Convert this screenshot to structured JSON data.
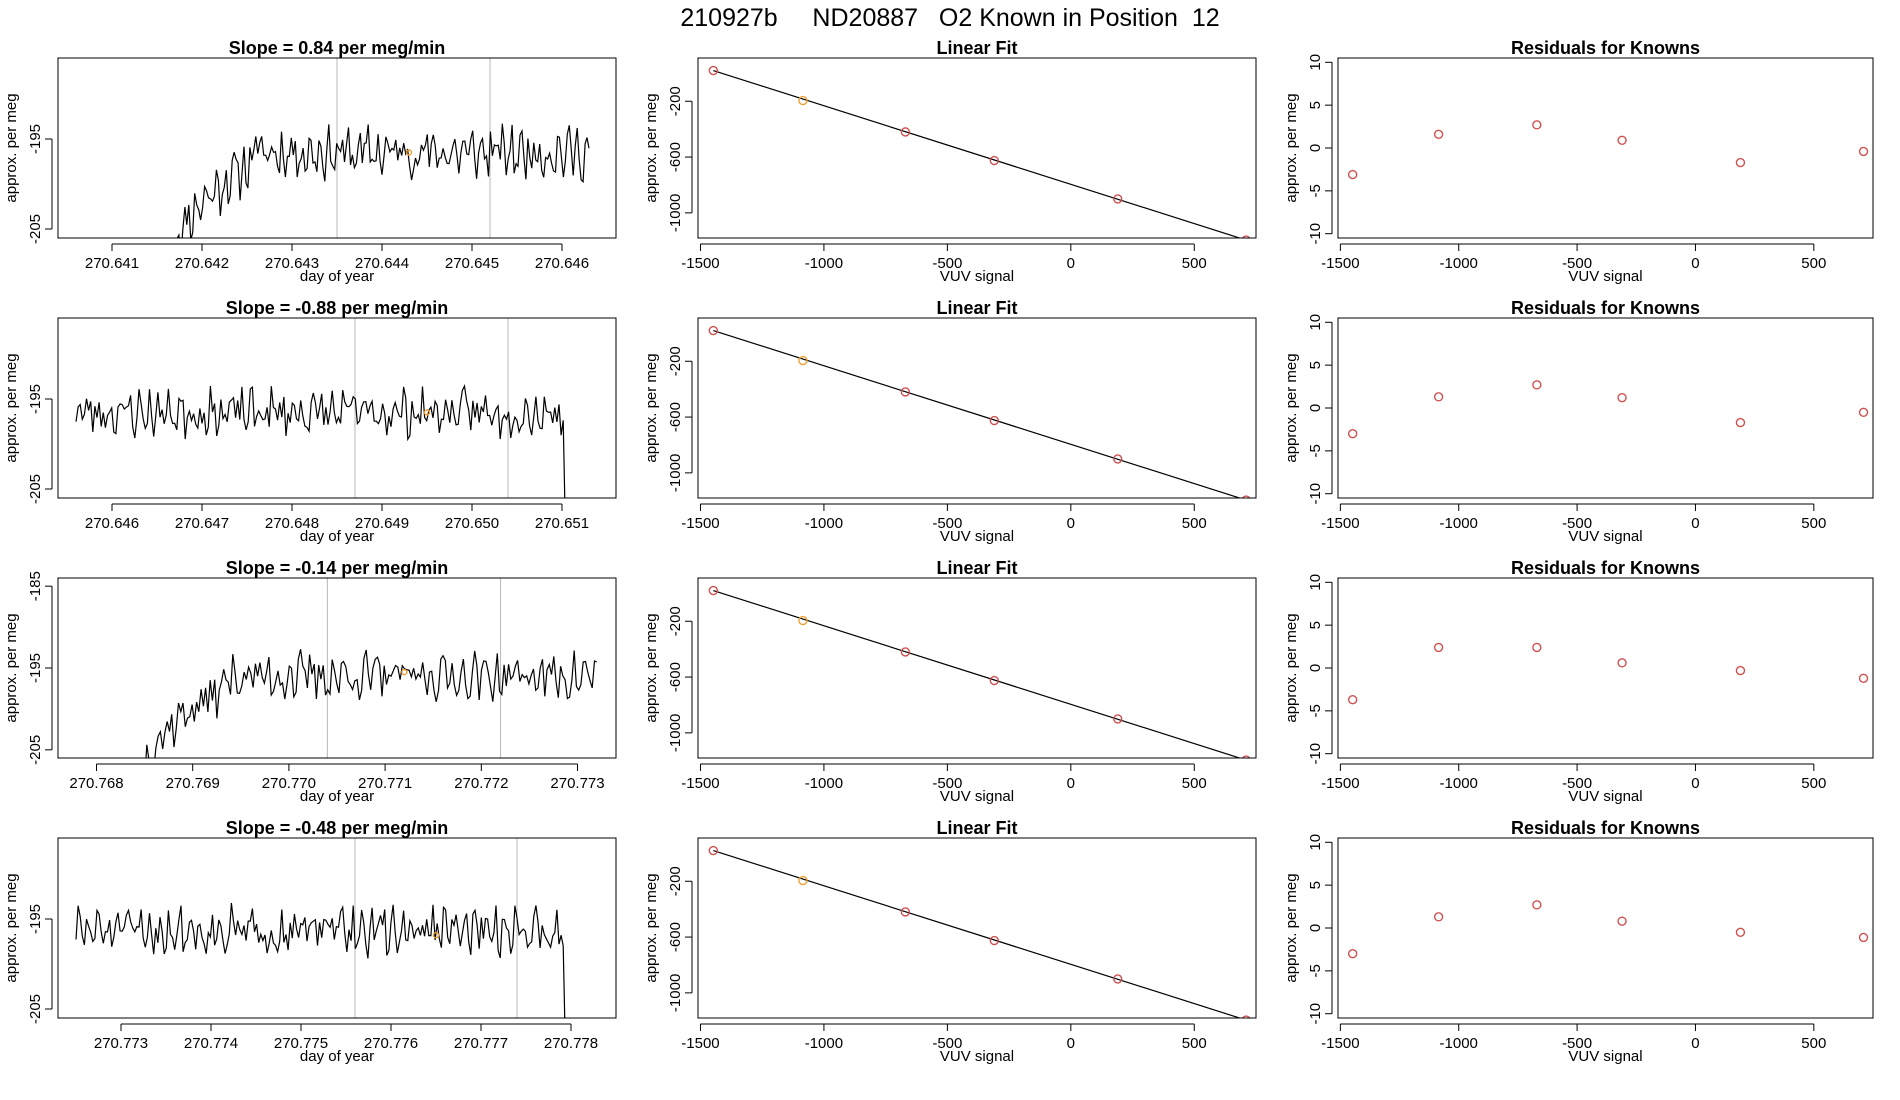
{
  "figure": {
    "title": "210927b     ND20887   O2 Known in Position  12"
  },
  "chart_data": [
    {
      "type": "line",
      "panel": "time-series",
      "row": 1,
      "title": "Slope =  0.84  per meg/min",
      "xlabel": "day of year",
      "ylabel": "approx. per meg",
      "xlim": [
        270.6404,
        270.6466
      ],
      "ylim": [
        -206,
        -186
      ],
      "xticks": [
        "270.641",
        "270.642",
        "270.643",
        "270.644",
        "270.645",
        "270.646"
      ],
      "xtick_values": [
        270.641,
        270.642,
        270.643,
        270.644,
        270.645,
        270.646
      ],
      "yticks": [
        "-205",
        "-195"
      ],
      "ytick_values": [
        -205,
        -195
      ],
      "vlines": [
        270.6435,
        270.6452
      ],
      "marker": {
        "x": 270.6443,
        "y": -196.5,
        "color": "#f0a030"
      },
      "start": 270.6417,
      "end": 270.6463,
      "level": -196.5,
      "ramp": 0.6,
      "noise": 2.2,
      "drop": false,
      "seed": 11,
      "n": 210,
      "line_color": "#000000"
    },
    {
      "type": "line",
      "panel": "linear-fit",
      "row": 1,
      "title": "Linear Fit",
      "xlabel": "VUV signal",
      "ylabel": "approx. per meg",
      "xlim": [
        -1510,
        750
      ],
      "ylim": [
        -1180,
        110
      ],
      "xticks": [
        "-1500",
        "-1000",
        "-500",
        "0",
        "500"
      ],
      "xtick_values": [
        -1500,
        -1000,
        -500,
        0,
        500
      ],
      "yticks": [
        "-200",
        "-600",
        "-1000"
      ],
      "ytick_values": [
        -200,
        -600,
        -1000
      ],
      "points": [
        {
          "x": -1448,
          "y": 20
        },
        {
          "x": -1085,
          "y": -195
        },
        {
          "x": -670,
          "y": -420
        },
        {
          "x": -310,
          "y": -625
        },
        {
          "x": 190,
          "y": -900
        },
        {
          "x": 710,
          "y": -1195
        }
      ],
      "highlight_index": 1,
      "point_color": "#d05050",
      "highlight_color": "#f0a030"
    },
    {
      "type": "scatter",
      "panel": "residuals",
      "row": 1,
      "title": "Residuals for Knowns",
      "xlabel": "VUV signal",
      "ylabel": "approx. per meg",
      "xlim": [
        -1510,
        750
      ],
      "ylim": [
        -10.5,
        10.5
      ],
      "xticks": [
        "-1500",
        "-1000",
        "-500",
        "0",
        "500"
      ],
      "xtick_values": [
        -1500,
        -1000,
        -500,
        0,
        500
      ],
      "yticks": [
        "-10",
        "-5",
        "0",
        "5",
        "10"
      ],
      "ytick_values": [
        -10,
        -5,
        0,
        5,
        10
      ],
      "points": [
        {
          "x": -1448,
          "y": -3.1
        },
        {
          "x": -1085,
          "y": 1.6
        },
        {
          "x": -670,
          "y": 2.7
        },
        {
          "x": -310,
          "y": 0.9
        },
        {
          "x": 190,
          "y": -1.7
        },
        {
          "x": 710,
          "y": -0.4
        }
      ],
      "point_color": "#d05050"
    },
    {
      "type": "line",
      "panel": "time-series",
      "row": 2,
      "title": "Slope =  -0.88  per meg/min",
      "xlabel": "day of year",
      "ylabel": "approx. per meg",
      "xlim": [
        270.6454,
        270.6516
      ],
      "ylim": [
        -206,
        -186
      ],
      "xticks": [
        "270.646",
        "270.647",
        "270.648",
        "270.649",
        "270.650",
        "270.651"
      ],
      "xtick_values": [
        270.646,
        270.647,
        270.648,
        270.649,
        270.65,
        270.651
      ],
      "yticks": [
        "-205",
        "-195"
      ],
      "ytick_values": [
        -205,
        -195
      ],
      "vlines": [
        270.6487,
        270.6504
      ],
      "marker": {
        "x": 270.6495,
        "y": -196.5,
        "color": "#f0a030"
      },
      "start": 270.6456,
      "end": 270.6512,
      "level": -196.5,
      "ramp": 0,
      "noise": 2.0,
      "drop": true,
      "seed": 23,
      "n": 240,
      "line_color": "#000000"
    },
    {
      "type": "line",
      "panel": "linear-fit",
      "row": 2,
      "title": "Linear Fit",
      "xlabel": "VUV signal",
      "ylabel": "approx. per meg",
      "xlim": [
        -1510,
        750
      ],
      "ylim": [
        -1180,
        110
      ],
      "xticks": [
        "-1500",
        "-1000",
        "-500",
        "0",
        "500"
      ],
      "xtick_values": [
        -1500,
        -1000,
        -500,
        0,
        500
      ],
      "yticks": [
        "-200",
        "-600",
        "-1000"
      ],
      "ytick_values": [
        -200,
        -600,
        -1000
      ],
      "points": [
        {
          "x": -1448,
          "y": 20
        },
        {
          "x": -1085,
          "y": -195
        },
        {
          "x": -670,
          "y": -420
        },
        {
          "x": -310,
          "y": -625
        },
        {
          "x": 190,
          "y": -900
        },
        {
          "x": 710,
          "y": -1195
        }
      ],
      "highlight_index": 1,
      "point_color": "#d05050",
      "highlight_color": "#f0a030"
    },
    {
      "type": "scatter",
      "panel": "residuals",
      "row": 2,
      "title": "Residuals for Knowns",
      "xlabel": "VUV signal",
      "ylabel": "approx. per meg",
      "xlim": [
        -1510,
        750
      ],
      "ylim": [
        -10.5,
        10.5
      ],
      "xticks": [
        "-1500",
        "-1000",
        "-500",
        "0",
        "500"
      ],
      "xtick_values": [
        -1500,
        -1000,
        -500,
        0,
        500
      ],
      "yticks": [
        "-10",
        "-5",
        "0",
        "5",
        "10"
      ],
      "ytick_values": [
        -10,
        -5,
        0,
        5,
        10
      ],
      "points": [
        {
          "x": -1448,
          "y": -3.0
        },
        {
          "x": -1085,
          "y": 1.3
        },
        {
          "x": -670,
          "y": 2.7
        },
        {
          "x": -310,
          "y": 1.2
        },
        {
          "x": 190,
          "y": -1.7
        },
        {
          "x": 710,
          "y": -0.5
        }
      ],
      "point_color": "#d05050"
    },
    {
      "type": "line",
      "panel": "time-series",
      "row": 3,
      "title": "Slope =  -0.14  per meg/min",
      "xlabel": "day of year",
      "ylabel": "approx. per meg",
      "xlim": [
        270.7676,
        270.7734
      ],
      "ylim": [
        -206,
        -184
      ],
      "xticks": [
        "270.768",
        "270.769",
        "270.770",
        "270.771",
        "270.772",
        "270.773"
      ],
      "xtick_values": [
        270.768,
        270.769,
        270.77,
        270.771,
        270.772,
        270.773
      ],
      "yticks": [
        "-205",
        "-195",
        "-185"
      ],
      "ytick_values": [
        -205,
        -195,
        -185
      ],
      "vlines": [
        270.7704,
        270.7722
      ],
      "marker": {
        "x": 270.7712,
        "y": -195.5,
        "color": "#f0a030"
      },
      "start": 270.7685,
      "end": 270.7732,
      "level": -196.0,
      "ramp": 0.7,
      "noise": 2.2,
      "drop": false,
      "seed": 37,
      "n": 200,
      "line_color": "#000000"
    },
    {
      "type": "line",
      "panel": "linear-fit",
      "row": 3,
      "title": "Linear Fit",
      "xlabel": "VUV signal",
      "ylabel": "approx. per meg",
      "xlim": [
        -1510,
        750
      ],
      "ylim": [
        -1180,
        110
      ],
      "xticks": [
        "-1500",
        "-1000",
        "-500",
        "0",
        "500"
      ],
      "xtick_values": [
        -1500,
        -1000,
        -500,
        0,
        500
      ],
      "yticks": [
        "-200",
        "-600",
        "-1000"
      ],
      "ytick_values": [
        -200,
        -600,
        -1000
      ],
      "points": [
        {
          "x": -1448,
          "y": 20
        },
        {
          "x": -1085,
          "y": -195
        },
        {
          "x": -670,
          "y": -420
        },
        {
          "x": -310,
          "y": -625
        },
        {
          "x": 190,
          "y": -900
        },
        {
          "x": 710,
          "y": -1195
        }
      ],
      "highlight_index": 1,
      "point_color": "#d05050",
      "highlight_color": "#f0a030"
    },
    {
      "type": "scatter",
      "panel": "residuals",
      "row": 3,
      "title": "Residuals for Knowns",
      "xlabel": "VUV signal",
      "ylabel": "approx. per meg",
      "xlim": [
        -1510,
        750
      ],
      "ylim": [
        -10.5,
        10.5
      ],
      "xticks": [
        "-1500",
        "-1000",
        "-500",
        "0",
        "500"
      ],
      "xtick_values": [
        -1500,
        -1000,
        -500,
        0,
        500
      ],
      "yticks": [
        "-10",
        "-5",
        "0",
        "5",
        "10"
      ],
      "ytick_values": [
        -10,
        -5,
        0,
        5,
        10
      ],
      "points": [
        {
          "x": -1448,
          "y": -3.7
        },
        {
          "x": -1085,
          "y": 2.4
        },
        {
          "x": -670,
          "y": 2.4
        },
        {
          "x": -310,
          "y": 0.6
        },
        {
          "x": 190,
          "y": -0.3
        },
        {
          "x": 710,
          "y": -1.2
        }
      ],
      "point_color": "#d05050"
    },
    {
      "type": "line",
      "panel": "time-series",
      "row": 4,
      "title": "Slope =  -0.48  per meg/min",
      "xlabel": "day of year",
      "ylabel": "approx. per meg",
      "xlim": [
        270.7723,
        270.7785
      ],
      "ylim": [
        -206,
        -186
      ],
      "xticks": [
        "270.773",
        "270.774",
        "270.775",
        "270.776",
        "270.777",
        "270.778"
      ],
      "xtick_values": [
        270.773,
        270.774,
        270.775,
        270.776,
        270.777,
        270.778
      ],
      "yticks": [
        "-205",
        "-195"
      ],
      "ytick_values": [
        -205,
        -195
      ],
      "vlines": [
        270.7756,
        270.7774
      ],
      "marker": {
        "x": 270.7765,
        "y": -196.8,
        "color": "#f0a030"
      },
      "start": 270.7725,
      "end": 270.7781,
      "level": -196.3,
      "ramp": 0,
      "noise": 2.0,
      "drop": true,
      "seed": 51,
      "n": 240,
      "line_color": "#000000"
    },
    {
      "type": "line",
      "panel": "linear-fit",
      "row": 4,
      "title": "Linear Fit",
      "xlabel": "VUV signal",
      "ylabel": "approx. per meg",
      "xlim": [
        -1510,
        750
      ],
      "ylim": [
        -1180,
        110
      ],
      "xticks": [
        "-1500",
        "-1000",
        "-500",
        "0",
        "500"
      ],
      "xtick_values": [
        -1500,
        -1000,
        -500,
        0,
        500
      ],
      "yticks": [
        "-200",
        "-600",
        "-1000"
      ],
      "ytick_values": [
        -200,
        -600,
        -1000
      ],
      "points": [
        {
          "x": -1448,
          "y": 20
        },
        {
          "x": -1085,
          "y": -195
        },
        {
          "x": -670,
          "y": -420
        },
        {
          "x": -310,
          "y": -625
        },
        {
          "x": 190,
          "y": -900
        },
        {
          "x": 710,
          "y": -1195
        }
      ],
      "highlight_index": 1,
      "point_color": "#d05050",
      "highlight_color": "#f0a030"
    },
    {
      "type": "scatter",
      "panel": "residuals",
      "row": 4,
      "title": "Residuals for Knowns",
      "xlabel": "VUV signal",
      "ylabel": "approx. per meg",
      "xlim": [
        -1510,
        750
      ],
      "ylim": [
        -10.5,
        10.5
      ],
      "xticks": [
        "-1500",
        "-1000",
        "-500",
        "0",
        "500"
      ],
      "xtick_values": [
        -1500,
        -1000,
        -500,
        0,
        500
      ],
      "yticks": [
        "-10",
        "-5",
        "0",
        "5",
        "10"
      ],
      "ytick_values": [
        -10,
        -5,
        0,
        5,
        10
      ],
      "points": [
        {
          "x": -1448,
          "y": -3.0
        },
        {
          "x": -1085,
          "y": 1.3
        },
        {
          "x": -670,
          "y": 2.7
        },
        {
          "x": -310,
          "y": 0.8
        },
        {
          "x": 190,
          "y": -0.5
        },
        {
          "x": 710,
          "y": -1.1
        }
      ],
      "point_color": "#d05050"
    }
  ]
}
